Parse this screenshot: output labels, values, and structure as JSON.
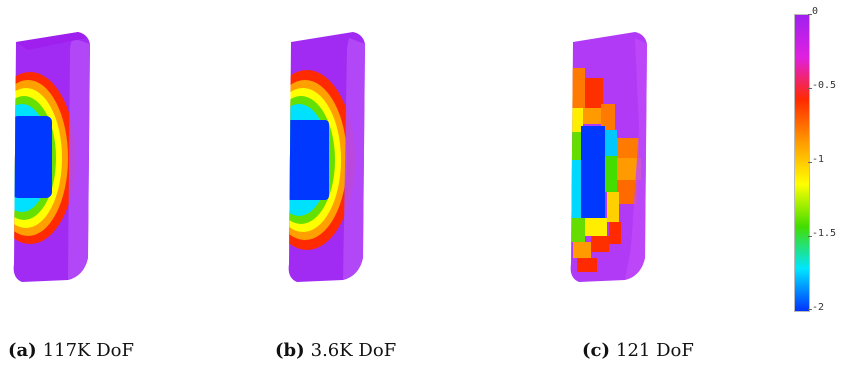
{
  "panels": [
    {
      "label": "(a)",
      "text": "117K DoF"
    },
    {
      "label": "(b)",
      "text": "3.6K DoF"
    },
    {
      "label": "(c)",
      "text": "121 DoF"
    }
  ],
  "colorbar": {
    "ticks": [
      "0",
      "-0.5",
      "-1",
      "-1.5",
      "-2"
    ],
    "colors": [
      "#a020f0",
      "#e020e0",
      "#ff2a00",
      "#ff9a00",
      "#ffff00",
      "#44dd00",
      "#00e6ff",
      "#0033ff"
    ]
  }
}
